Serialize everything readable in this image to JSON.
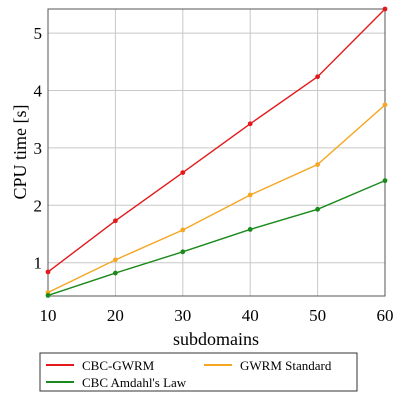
{
  "chart_data": {
    "type": "line",
    "xlabel": "subdomains",
    "ylabel": "CPU time [s]",
    "x": [
      10,
      20,
      30,
      40,
      50,
      60
    ],
    "xlim": [
      10,
      60
    ],
    "ylim": [
      0.42,
      5.42
    ],
    "xticks": [
      "10",
      "20",
      "30",
      "40",
      "50",
      "60"
    ],
    "yticks": [
      "1",
      "2",
      "3",
      "4",
      "5"
    ],
    "ytick_values": [
      1,
      2,
      3,
      4,
      5
    ],
    "grid": true,
    "legend_position": "bottom",
    "series": [
      {
        "name": "CBC-GWRM",
        "color": "#e31a1c",
        "values": [
          0.84,
          1.73,
          2.57,
          3.42,
          4.24,
          5.42
        ]
      },
      {
        "name": "GWRM Standard",
        "color": "#f5a623",
        "values": [
          0.48,
          1.05,
          1.57,
          2.18,
          2.71,
          3.75
        ]
      },
      {
        "name": "CBC Amdahl's Law",
        "color": "#1a8a1a",
        "values": [
          0.43,
          0.82,
          1.19,
          1.58,
          1.93,
          2.43
        ]
      }
    ]
  }
}
